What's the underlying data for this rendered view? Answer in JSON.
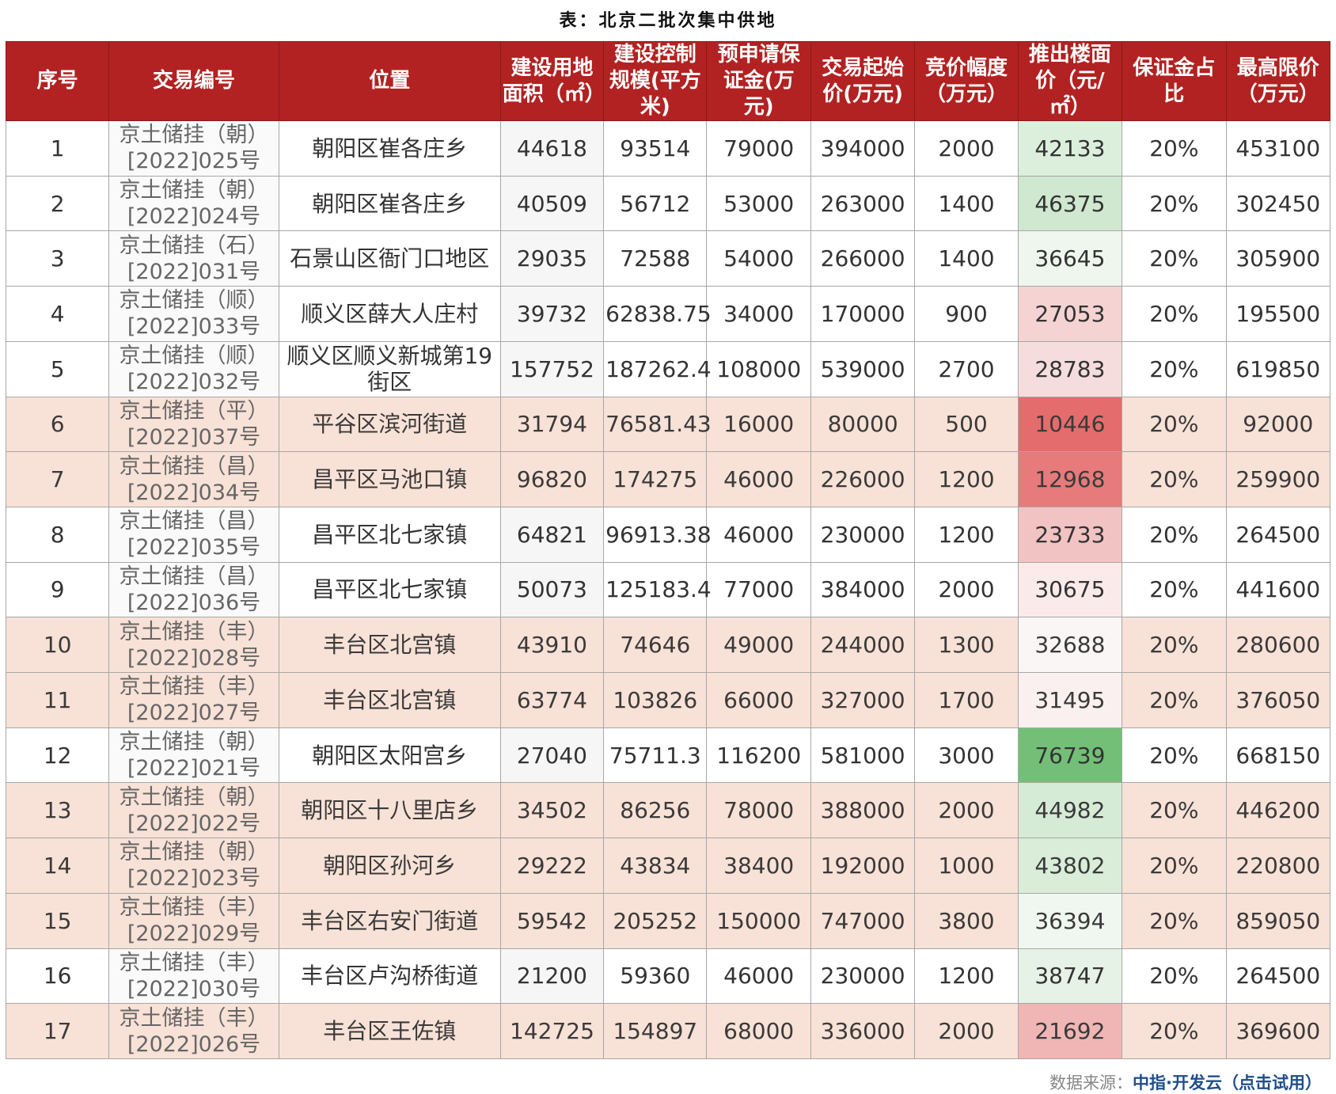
{
  "title": "表：北京二批次集中供地",
  "headers": [
    "序号",
    "交易编号",
    "位置",
    "建设用地面积（㎡）",
    "建设控制规模(平方米)",
    "预申请保证金(万元)",
    "交易起始价(万元)",
    "竞价幅度（万元）",
    "推出楼面价（元/㎡）",
    "保证金占比",
    "最高限价（万元）"
  ],
  "rows": [
    {
      "no": "1",
      "code_a": "京土储挂（朝）",
      "code_b": "[2022]025号",
      "loc": "朝阳区崔各庄乡",
      "area": "44618",
      "scale": "93514",
      "deposit": "79000",
      "start": "394000",
      "step": "2000",
      "floor": "42133",
      "ratio": "20%",
      "cap": "453100",
      "floor_bg": "#dcefdc",
      "band": "white"
    },
    {
      "no": "2",
      "code_a": "京土储挂（朝）",
      "code_b": "[2022]024号",
      "loc": "朝阳区崔各庄乡",
      "area": "40509",
      "scale": "56712",
      "deposit": "53000",
      "start": "263000",
      "step": "1400",
      "floor": "46375",
      "ratio": "20%",
      "cap": "302450",
      "floor_bg": "#cfe8cf",
      "band": "white"
    },
    {
      "no": "3",
      "code_a": "京土储挂（石）",
      "code_b": "[2022]031号",
      "loc": "石景山区衙门口地区",
      "area": "29035",
      "scale": "72588",
      "deposit": "54000",
      "start": "266000",
      "step": "1400",
      "floor": "36645",
      "ratio": "20%",
      "cap": "305900",
      "floor_bg": "#eef6ee",
      "band": "white"
    },
    {
      "no": "4",
      "code_a": "京土储挂（顺）",
      "code_b": "[2022]033号",
      "loc": "顺义区薛大人庄村",
      "area": "39732",
      "scale": "62838.75",
      "deposit": "34000",
      "start": "170000",
      "step": "900",
      "floor": "27053",
      "ratio": "20%",
      "cap": "195500",
      "floor_bg": "#f5d3d3",
      "band": "white"
    },
    {
      "no": "5",
      "code_a": "京土储挂（顺）",
      "code_b": "[2022]032号",
      "loc": "顺义区顺义新城第19街区",
      "area": "157752",
      "scale": "187262.4",
      "deposit": "108000",
      "start": "539000",
      "step": "2700",
      "floor": "28783",
      "ratio": "20%",
      "cap": "619850",
      "floor_bg": "#f6dddd",
      "band": "white"
    },
    {
      "no": "6",
      "code_a": "京土储挂（平）",
      "code_b": "[2022]037号",
      "loc": "平谷区滨河街道",
      "area": "31794",
      "scale": "76581.43",
      "deposit": "16000",
      "start": "80000",
      "step": "500",
      "floor": "10446",
      "ratio": "20%",
      "cap": "92000",
      "floor_bg": "#e56c6c",
      "band": "peach"
    },
    {
      "no": "7",
      "code_a": "京土储挂（昌）",
      "code_b": "[2022]034号",
      "loc": "昌平区马池口镇",
      "area": "96820",
      "scale": "174275",
      "deposit": "46000",
      "start": "226000",
      "step": "1200",
      "floor": "12968",
      "ratio": "20%",
      "cap": "259900",
      "floor_bg": "#e77a7a",
      "band": "peach"
    },
    {
      "no": "8",
      "code_a": "京土储挂（昌）",
      "code_b": "[2022]035号",
      "loc": "昌平区北七家镇",
      "area": "64821",
      "scale": "96913.38",
      "deposit": "46000",
      "start": "230000",
      "step": "1200",
      "floor": "23733",
      "ratio": "20%",
      "cap": "264500",
      "floor_bg": "#f2c3c3",
      "band": "white"
    },
    {
      "no": "9",
      "code_a": "京土储挂（昌）",
      "code_b": "[2022]036号",
      "loc": "昌平区北七家镇",
      "area": "50073",
      "scale": "125183.4",
      "deposit": "77000",
      "start": "384000",
      "step": "2000",
      "floor": "30675",
      "ratio": "20%",
      "cap": "441600",
      "floor_bg": "#faeaea",
      "band": "white"
    },
    {
      "no": "10",
      "code_a": "京土储挂（丰）",
      "code_b": "[2022]028号",
      "loc": "丰台区北宫镇",
      "area": "43910",
      "scale": "74646",
      "deposit": "49000",
      "start": "244000",
      "step": "1300",
      "floor": "32688",
      "ratio": "20%",
      "cap": "280600",
      "floor_bg": "#fbf6f6",
      "band": "peach"
    },
    {
      "no": "11",
      "code_a": "京土储挂（丰）",
      "code_b": "[2022]027号",
      "loc": "丰台区北宫镇",
      "area": "63774",
      "scale": "103826",
      "deposit": "66000",
      "start": "327000",
      "step": "1700",
      "floor": "31495",
      "ratio": "20%",
      "cap": "376050",
      "floor_bg": "#faf0f0",
      "band": "peach"
    },
    {
      "no": "12",
      "code_a": "京土储挂（朝）",
      "code_b": "[2022]021号",
      "loc": "朝阳区太阳宫乡",
      "area": "27040",
      "scale": "75711.3",
      "deposit": "116200",
      "start": "581000",
      "step": "3000",
      "floor": "76739",
      "ratio": "20%",
      "cap": "668150",
      "floor_bg": "#73bf78",
      "band": "white"
    },
    {
      "no": "13",
      "code_a": "京土储挂（朝）",
      "code_b": "[2022]022号",
      "loc": "朝阳区十八里店乡",
      "area": "34502",
      "scale": "86256",
      "deposit": "78000",
      "start": "388000",
      "step": "2000",
      "floor": "44982",
      "ratio": "20%",
      "cap": "446200",
      "floor_bg": "#d6ebd6",
      "band": "peach"
    },
    {
      "no": "14",
      "code_a": "京土储挂（朝）",
      "code_b": "[2022]023号",
      "loc": "朝阳区孙河乡",
      "area": "29222",
      "scale": "43834",
      "deposit": "38400",
      "start": "192000",
      "step": "1000",
      "floor": "43802",
      "ratio": "20%",
      "cap": "220800",
      "floor_bg": "#d9edd9",
      "band": "peach"
    },
    {
      "no": "15",
      "code_a": "京土储挂（丰）",
      "code_b": "[2022]029号",
      "loc": "丰台区右安门街道",
      "area": "59542",
      "scale": "205252",
      "deposit": "150000",
      "start": "747000",
      "step": "3800",
      "floor": "36394",
      "ratio": "20%",
      "cap": "859050",
      "floor_bg": "#f0f7f0",
      "band": "peach"
    },
    {
      "no": "16",
      "code_a": "京土储挂（丰）",
      "code_b": "[2022]030号",
      "loc": "丰台区卢沟桥街道",
      "area": "21200",
      "scale": "59360",
      "deposit": "46000",
      "start": "230000",
      "step": "1200",
      "floor": "38747",
      "ratio": "20%",
      "cap": "264500",
      "floor_bg": "#e6f2e6",
      "band": "white"
    },
    {
      "no": "17",
      "code_a": "京土储挂（丰）",
      "code_b": "[2022]026号",
      "loc": "丰台区王佐镇",
      "area": "142725",
      "scale": "154897",
      "deposit": "68000",
      "start": "336000",
      "step": "2000",
      "floor": "21692",
      "ratio": "20%",
      "cap": "369600",
      "floor_bg": "#f0b5b5",
      "band": "peach"
    }
  ],
  "footer": {
    "source_label": "数据来源：",
    "brand": "中指·开发云（点击试用）"
  }
}
